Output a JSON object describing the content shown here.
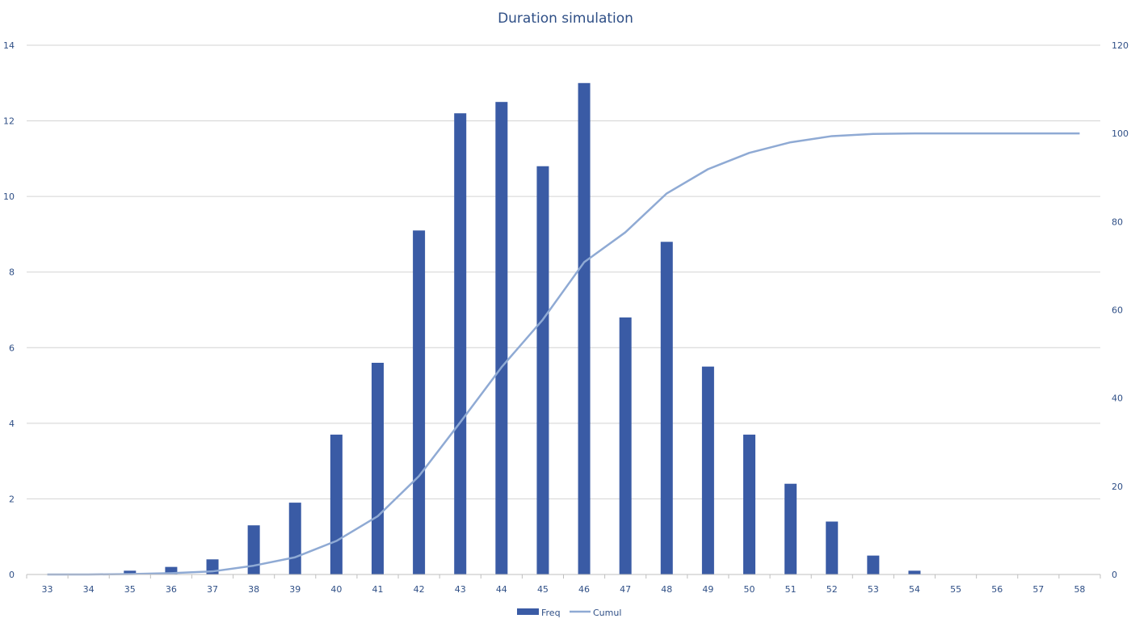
{
  "chart_data": {
    "type": "bar",
    "title": "Duration simulation",
    "categories": [
      "33",
      "34",
      "35",
      "36",
      "37",
      "38",
      "39",
      "40",
      "41",
      "42",
      "43",
      "44",
      "45",
      "46",
      "47",
      "48",
      "49",
      "50",
      "51",
      "52",
      "53",
      "54",
      "55",
      "56",
      "57",
      "58"
    ],
    "series": [
      {
        "name": "Freq",
        "type": "bar",
        "axis": "left",
        "color": "#3a5ba5",
        "values": [
          0,
          0,
          0.1,
          0.2,
          0.4,
          1.3,
          1.9,
          3.7,
          5.6,
          9.1,
          12.2,
          12.5,
          10.8,
          13.0,
          6.8,
          8.8,
          5.5,
          3.7,
          2.4,
          1.4,
          0.5,
          0.1,
          0,
          0,
          0,
          0
        ]
      },
      {
        "name": "Cumul",
        "type": "line",
        "axis": "right",
        "color": "#8faad4",
        "values": [
          0,
          0,
          0.1,
          0.3,
          0.7,
          2.0,
          3.9,
          7.6,
          13.2,
          22.3,
          34.5,
          47.0,
          57.8,
          70.8,
          77.6,
          86.4,
          91.9,
          95.6,
          98.0,
          99.4,
          99.9,
          100,
          100,
          100,
          100,
          100
        ]
      }
    ],
    "ylim": [
      0,
      14
    ],
    "y_ticks": [
      "0",
      "2",
      "4",
      "6",
      "8",
      "10",
      "12",
      "14"
    ],
    "y2lim": [
      0,
      120
    ],
    "y2_ticks": [
      "0",
      "20",
      "40",
      "60",
      "80",
      "100",
      "120"
    ],
    "grid": true,
    "legend": "bottom"
  }
}
